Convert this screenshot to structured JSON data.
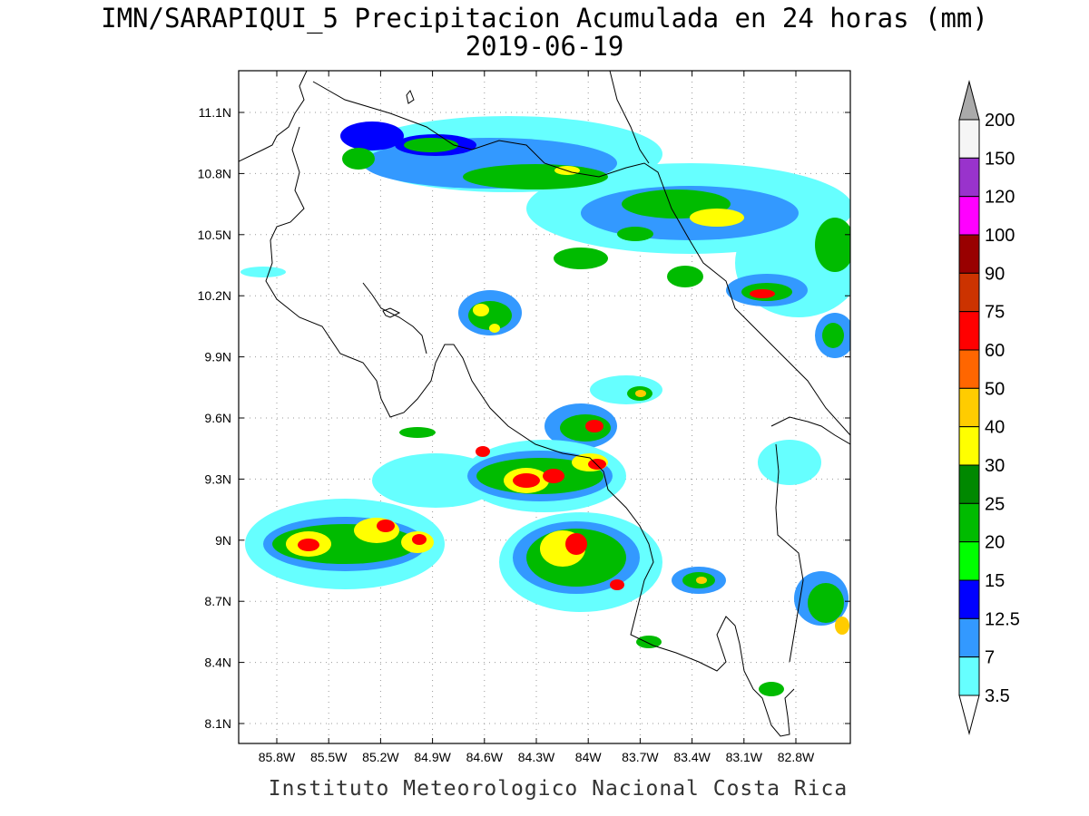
{
  "title": {
    "line1": "IMN/SARAPIQUI_5 Precipitacion Acumulada en 24 horas (mm)",
    "line2": "2019-06-19"
  },
  "footer": "Instituto Meteorologico Nacional Costa Rica",
  "map": {
    "lat_labels": [
      "11.1N",
      "10.8N",
      "10.5N",
      "10.2N",
      "9.9N",
      "9.6N",
      "9.3N",
      "9N",
      "8.7N",
      "8.4N",
      "8.1N"
    ],
    "lon_labels": [
      "85.8W",
      "85.5W",
      "85.2W",
      "84.9W",
      "84.6W",
      "84.3W",
      "84W",
      "83.7W",
      "83.4W",
      "83.1W",
      "82.8W"
    ],
    "grid": "dotted"
  },
  "colorbar": {
    "labels": [
      "200",
      "150",
      "120",
      "100",
      "90",
      "75",
      "60",
      "50",
      "40",
      "30",
      "25",
      "20",
      "15",
      "12.5",
      "7",
      "3.5"
    ],
    "colors": [
      "#aaaaaa",
      "#f5f5f5",
      "#9933cc",
      "#ff00ff",
      "#990000",
      "#cc3300",
      "#ff0000",
      "#ff6600",
      "#ffcc00",
      "#ffff00",
      "#008800",
      "#00bb00",
      "#00ff00",
      "#0000ff",
      "#3399ff",
      "#66ffff",
      "#ffffff"
    ]
  }
}
